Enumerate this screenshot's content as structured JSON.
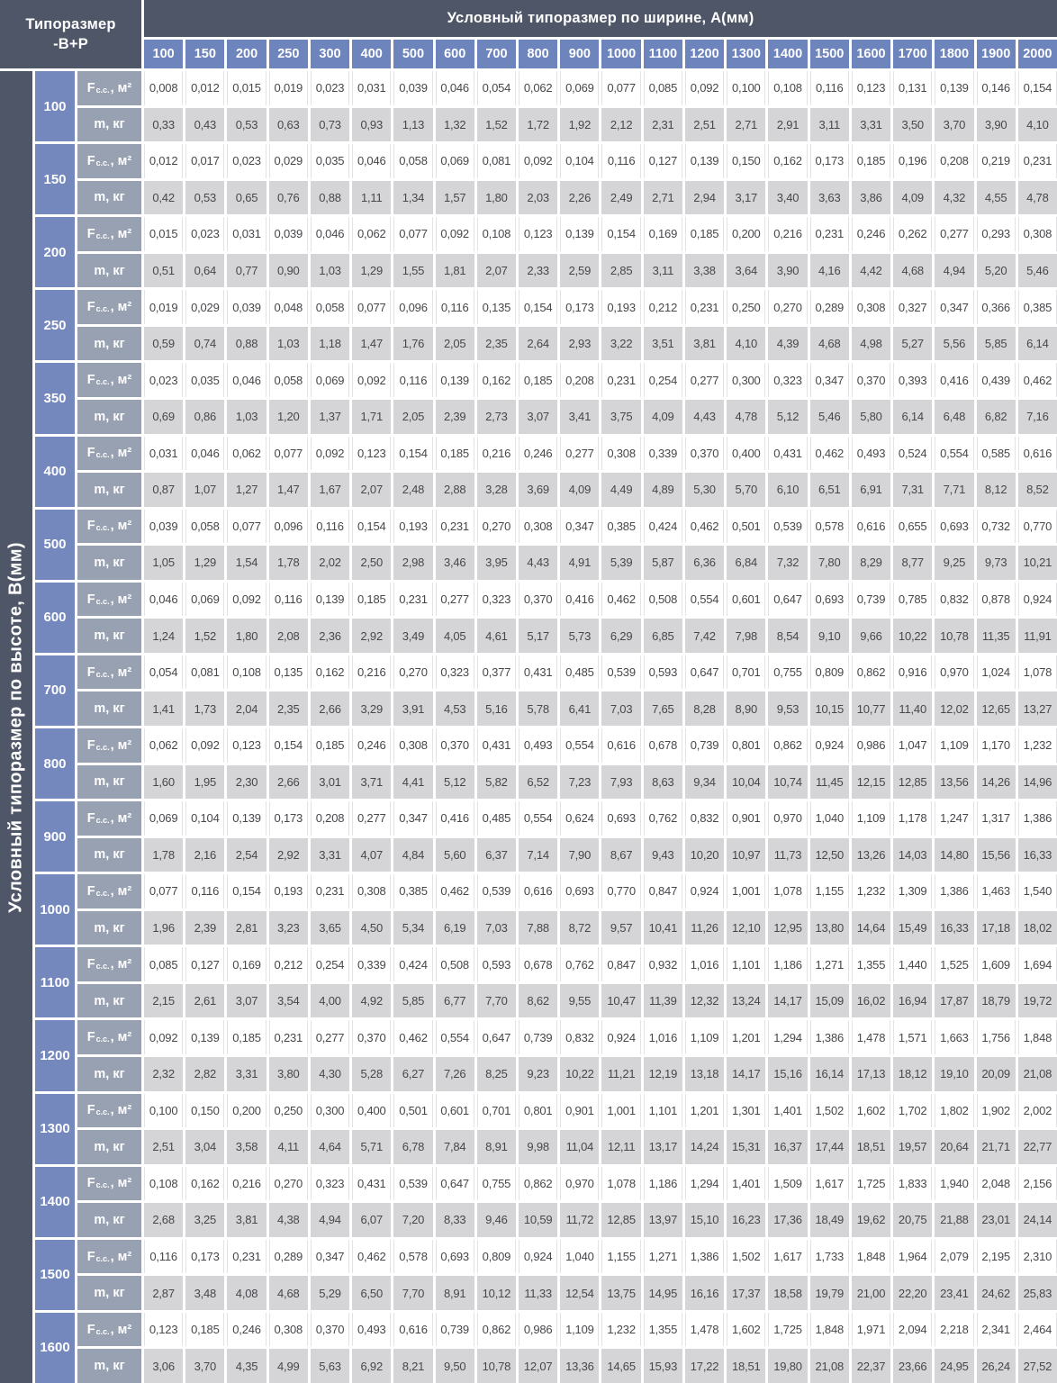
{
  "corner": {
    "line1": "Типоразмер",
    "line2": "-В+Р"
  },
  "top_axis": {
    "title": "Условный типоразмер по ширине, А(мм)",
    "columns": [
      "100",
      "150",
      "200",
      "250",
      "300",
      "400",
      "500",
      "600",
      "700",
      "800",
      "900",
      "1000",
      "1100",
      "1200",
      "1300",
      "1400",
      "1500",
      "1600",
      "1700",
      "1800",
      "1900",
      "2000"
    ]
  },
  "left_axis": {
    "title": "Условный типоразмер по высоте, В(мм)"
  },
  "metric_labels": {
    "area_prefix": "F",
    "area_sub": "c.c.",
    "area_suffix": ", м²",
    "mass": "m, кг"
  },
  "rows": [
    {
      "height": "100",
      "F": [
        "0,008",
        "0,012",
        "0,015",
        "0,019",
        "0,023",
        "0,031",
        "0,039",
        "0,046",
        "0,054",
        "0,062",
        "0,069",
        "0,077",
        "0,085",
        "0,092",
        "0,100",
        "0,108",
        "0,116",
        "0,123",
        "0,131",
        "0,139",
        "0,146",
        "0,154"
      ],
      "m": [
        "0,33",
        "0,43",
        "0,53",
        "0,63",
        "0,73",
        "0,93",
        "1,13",
        "1,32",
        "1,52",
        "1,72",
        "1,92",
        "2,12",
        "2,31",
        "2,51",
        "2,71",
        "2,91",
        "3,11",
        "3,31",
        "3,50",
        "3,70",
        "3,90",
        "4,10"
      ]
    },
    {
      "height": "150",
      "F": [
        "0,012",
        "0,017",
        "0,023",
        "0,029",
        "0,035",
        "0,046",
        "0,058",
        "0,069",
        "0,081",
        "0,092",
        "0,104",
        "0,116",
        "0,127",
        "0,139",
        "0,150",
        "0,162",
        "0,173",
        "0,185",
        "0,196",
        "0,208",
        "0,219",
        "0,231"
      ],
      "m": [
        "0,42",
        "0,53",
        "0,65",
        "0,76",
        "0,88",
        "1,11",
        "1,34",
        "1,57",
        "1,80",
        "2,03",
        "2,26",
        "2,49",
        "2,71",
        "2,94",
        "3,17",
        "3,40",
        "3,63",
        "3,86",
        "4,09",
        "4,32",
        "4,55",
        "4,78"
      ]
    },
    {
      "height": "200",
      "F": [
        "0,015",
        "0,023",
        "0,031",
        "0,039",
        "0,046",
        "0,062",
        "0,077",
        "0,092",
        "0,108",
        "0,123",
        "0,139",
        "0,154",
        "0,169",
        "0,185",
        "0,200",
        "0,216",
        "0,231",
        "0,246",
        "0,262",
        "0,277",
        "0,293",
        "0,308"
      ],
      "m": [
        "0,51",
        "0,64",
        "0,77",
        "0,90",
        "1,03",
        "1,29",
        "1,55",
        "1,81",
        "2,07",
        "2,33",
        "2,59",
        "2,85",
        "3,11",
        "3,38",
        "3,64",
        "3,90",
        "4,16",
        "4,42",
        "4,68",
        "4,94",
        "5,20",
        "5,46"
      ]
    },
    {
      "height": "250",
      "F": [
        "0,019",
        "0,029",
        "0,039",
        "0,048",
        "0,058",
        "0,077",
        "0,096",
        "0,116",
        "0,135",
        "0,154",
        "0,173",
        "0,193",
        "0,212",
        "0,231",
        "0,250",
        "0,270",
        "0,289",
        "0,308",
        "0,327",
        "0,347",
        "0,366",
        "0,385"
      ],
      "m": [
        "0,59",
        "0,74",
        "0,88",
        "1,03",
        "1,18",
        "1,47",
        "1,76",
        "2,05",
        "2,35",
        "2,64",
        "2,93",
        "3,22",
        "3,51",
        "3,81",
        "4,10",
        "4,39",
        "4,68",
        "4,98",
        "5,27",
        "5,56",
        "5,85",
        "6,14"
      ]
    },
    {
      "height": "350",
      "F": [
        "0,023",
        "0,035",
        "0,046",
        "0,058",
        "0,069",
        "0,092",
        "0,116",
        "0,139",
        "0,162",
        "0,185",
        "0,208",
        "0,231",
        "0,254",
        "0,277",
        "0,300",
        "0,323",
        "0,347",
        "0,370",
        "0,393",
        "0,416",
        "0,439",
        "0,462"
      ],
      "m": [
        "0,69",
        "0,86",
        "1,03",
        "1,20",
        "1,37",
        "1,71",
        "2,05",
        "2,39",
        "2,73",
        "3,07",
        "3,41",
        "3,75",
        "4,09",
        "4,43",
        "4,78",
        "5,12",
        "5,46",
        "5,80",
        "6,14",
        "6,48",
        "6,82",
        "7,16"
      ]
    },
    {
      "height": "400",
      "F": [
        "0,031",
        "0,046",
        "0,062",
        "0,077",
        "0,092",
        "0,123",
        "0,154",
        "0,185",
        "0,216",
        "0,246",
        "0,277",
        "0,308",
        "0,339",
        "0,370",
        "0,400",
        "0,431",
        "0,462",
        "0,493",
        "0,524",
        "0,554",
        "0,585",
        "0,616"
      ],
      "m": [
        "0,87",
        "1,07",
        "1,27",
        "1,47",
        "1,67",
        "2,07",
        "2,48",
        "2,88",
        "3,28",
        "3,69",
        "4,09",
        "4,49",
        "4,89",
        "5,30",
        "5,70",
        "6,10",
        "6,51",
        "6,91",
        "7,31",
        "7,71",
        "8,12",
        "8,52"
      ]
    },
    {
      "height": "500",
      "F": [
        "0,039",
        "0,058",
        "0,077",
        "0,096",
        "0,116",
        "0,154",
        "0,193",
        "0,231",
        "0,270",
        "0,308",
        "0,347",
        "0,385",
        "0,424",
        "0,462",
        "0,501",
        "0,539",
        "0,578",
        "0,616",
        "0,655",
        "0,693",
        "0,732",
        "0,770"
      ],
      "m": [
        "1,05",
        "1,29",
        "1,54",
        "1,78",
        "2,02",
        "2,50",
        "2,98",
        "3,46",
        "3,95",
        "4,43",
        "4,91",
        "5,39",
        "5,87",
        "6,36",
        "6,84",
        "7,32",
        "7,80",
        "8,29",
        "8,77",
        "9,25",
        "9,73",
        "10,21"
      ]
    },
    {
      "height": "600",
      "F": [
        "0,046",
        "0,069",
        "0,092",
        "0,116",
        "0,139",
        "0,185",
        "0,231",
        "0,277",
        "0,323",
        "0,370",
        "0,416",
        "0,462",
        "0,508",
        "0,554",
        "0,601",
        "0,647",
        "0,693",
        "0,739",
        "0,785",
        "0,832",
        "0,878",
        "0,924"
      ],
      "m": [
        "1,24",
        "1,52",
        "1,80",
        "2,08",
        "2,36",
        "2,92",
        "3,49",
        "4,05",
        "4,61",
        "5,17",
        "5,73",
        "6,29",
        "6,85",
        "7,42",
        "7,98",
        "8,54",
        "9,10",
        "9,66",
        "10,22",
        "10,78",
        "11,35",
        "11,91"
      ]
    },
    {
      "height": "700",
      "F": [
        "0,054",
        "0,081",
        "0,108",
        "0,135",
        "0,162",
        "0,216",
        "0,270",
        "0,323",
        "0,377",
        "0,431",
        "0,485",
        "0,539",
        "0,593",
        "0,647",
        "0,701",
        "0,755",
        "0,809",
        "0,862",
        "0,916",
        "0,970",
        "1,024",
        "1,078"
      ],
      "m": [
        "1,41",
        "1,73",
        "2,04",
        "2,35",
        "2,66",
        "3,29",
        "3,91",
        "4,53",
        "5,16",
        "5,78",
        "6,41",
        "7,03",
        "7,65",
        "8,28",
        "8,90",
        "9,53",
        "10,15",
        "10,77",
        "11,40",
        "12,02",
        "12,65",
        "13,27"
      ]
    },
    {
      "height": "800",
      "F": [
        "0,062",
        "0,092",
        "0,123",
        "0,154",
        "0,185",
        "0,246",
        "0,308",
        "0,370",
        "0,431",
        "0,493",
        "0,554",
        "0,616",
        "0,678",
        "0,739",
        "0,801",
        "0,862",
        "0,924",
        "0,986",
        "1,047",
        "1,109",
        "1,170",
        "1,232"
      ],
      "m": [
        "1,60",
        "1,95",
        "2,30",
        "2,66",
        "3,01",
        "3,71",
        "4,41",
        "5,12",
        "5,82",
        "6,52",
        "7,23",
        "7,93",
        "8,63",
        "9,34",
        "10,04",
        "10,74",
        "11,45",
        "12,15",
        "12,85",
        "13,56",
        "14,26",
        "14,96"
      ]
    },
    {
      "height": "900",
      "F": [
        "0,069",
        "0,104",
        "0,139",
        "0,173",
        "0,208",
        "0,277",
        "0,347",
        "0,416",
        "0,485",
        "0,554",
        "0,624",
        "0,693",
        "0,762",
        "0,832",
        "0,901",
        "0,970",
        "1,040",
        "1,109",
        "1,178",
        "1,247",
        "1,317",
        "1,386"
      ],
      "m": [
        "1,78",
        "2,16",
        "2,54",
        "2,92",
        "3,31",
        "4,07",
        "4,84",
        "5,60",
        "6,37",
        "7,14",
        "7,90",
        "8,67",
        "9,43",
        "10,20",
        "10,97",
        "11,73",
        "12,50",
        "13,26",
        "14,03",
        "14,80",
        "15,56",
        "16,33"
      ]
    },
    {
      "height": "1000",
      "F": [
        "0,077",
        "0,116",
        "0,154",
        "0,193",
        "0,231",
        "0,308",
        "0,385",
        "0,462",
        "0,539",
        "0,616",
        "0,693",
        "0,770",
        "0,847",
        "0,924",
        "1,001",
        "1,078",
        "1,155",
        "1,232",
        "1,309",
        "1,386",
        "1,463",
        "1,540"
      ],
      "m": [
        "1,96",
        "2,39",
        "2,81",
        "3,23",
        "3,65",
        "4,50",
        "5,34",
        "6,19",
        "7,03",
        "7,88",
        "8,72",
        "9,57",
        "10,41",
        "11,26",
        "12,10",
        "12,95",
        "13,80",
        "14,64",
        "15,49",
        "16,33",
        "17,18",
        "18,02"
      ]
    },
    {
      "height": "1100",
      "F": [
        "0,085",
        "0,127",
        "0,169",
        "0,212",
        "0,254",
        "0,339",
        "0,424",
        "0,508",
        "0,593",
        "0,678",
        "0,762",
        "0,847",
        "0,932",
        "1,016",
        "1,101",
        "1,186",
        "1,271",
        "1,355",
        "1,440",
        "1,525",
        "1,609",
        "1,694"
      ],
      "m": [
        "2,15",
        "2,61",
        "3,07",
        "3,54",
        "4,00",
        "4,92",
        "5,85",
        "6,77",
        "7,70",
        "8,62",
        "9,55",
        "10,47",
        "11,39",
        "12,32",
        "13,24",
        "14,17",
        "15,09",
        "16,02",
        "16,94",
        "17,87",
        "18,79",
        "19,72"
      ]
    },
    {
      "height": "1200",
      "F": [
        "0,092",
        "0,139",
        "0,185",
        "0,231",
        "0,277",
        "0,370",
        "0,462",
        "0,554",
        "0,647",
        "0,739",
        "0,832",
        "0,924",
        "1,016",
        "1,109",
        "1,201",
        "1,294",
        "1,386",
        "1,478",
        "1,571",
        "1,663",
        "1,756",
        "1,848"
      ],
      "m": [
        "2,32",
        "2,82",
        "3,31",
        "3,80",
        "4,30",
        "5,28",
        "6,27",
        "7,26",
        "8,25",
        "9,23",
        "10,22",
        "11,21",
        "12,19",
        "13,18",
        "14,17",
        "15,16",
        "16,14",
        "17,13",
        "18,12",
        "19,10",
        "20,09",
        "21,08"
      ]
    },
    {
      "height": "1300",
      "F": [
        "0,100",
        "0,150",
        "0,200",
        "0,250",
        "0,300",
        "0,400",
        "0,501",
        "0,601",
        "0,701",
        "0,801",
        "0,901",
        "1,001",
        "1,101",
        "1,201",
        "1,301",
        "1,401",
        "1,502",
        "1,602",
        "1,702",
        "1,802",
        "1,902",
        "2,002"
      ],
      "m": [
        "2,51",
        "3,04",
        "3,58",
        "4,11",
        "4,64",
        "5,71",
        "6,78",
        "7,84",
        "8,91",
        "9,98",
        "11,04",
        "12,11",
        "13,17",
        "14,24",
        "15,31",
        "16,37",
        "17,44",
        "18,51",
        "19,57",
        "20,64",
        "21,71",
        "22,77"
      ]
    },
    {
      "height": "1400",
      "F": [
        "0,108",
        "0,162",
        "0,216",
        "0,270",
        "0,323",
        "0,431",
        "0,539",
        "0,647",
        "0,755",
        "0,862",
        "0,970",
        "1,078",
        "1,186",
        "1,294",
        "1,401",
        "1,509",
        "1,617",
        "1,725",
        "1,833",
        "1,940",
        "2,048",
        "2,156"
      ],
      "m": [
        "2,68",
        "3,25",
        "3,81",
        "4,38",
        "4,94",
        "6,07",
        "7,20",
        "8,33",
        "9,46",
        "10,59",
        "11,72",
        "12,85",
        "13,97",
        "15,10",
        "16,23",
        "17,36",
        "18,49",
        "19,62",
        "20,75",
        "21,88",
        "23,01",
        "24,14"
      ]
    },
    {
      "height": "1500",
      "F": [
        "0,116",
        "0,173",
        "0,231",
        "0,289",
        "0,347",
        "0,462",
        "0,578",
        "0,693",
        "0,809",
        "0,924",
        "1,040",
        "1,155",
        "1,271",
        "1,386",
        "1,502",
        "1,617",
        "1,733",
        "1,848",
        "1,964",
        "2,079",
        "2,195",
        "2,310"
      ],
      "m": [
        "2,87",
        "3,48",
        "4,08",
        "4,68",
        "5,29",
        "6,50",
        "7,70",
        "8,91",
        "10,12",
        "11,33",
        "12,54",
        "13,75",
        "14,95",
        "16,16",
        "17,37",
        "18,58",
        "19,79",
        "21,00",
        "22,20",
        "23,41",
        "24,62",
        "25,83"
      ]
    },
    {
      "height": "1600",
      "F": [
        "0,123",
        "0,185",
        "0,246",
        "0,308",
        "0,370",
        "0,493",
        "0,616",
        "0,739",
        "0,862",
        "0,986",
        "1,109",
        "1,232",
        "1,355",
        "1,478",
        "1,602",
        "1,725",
        "1,848",
        "1,971",
        "2,094",
        "2,218",
        "2,341",
        "2,464"
      ],
      "m": [
        "3,06",
        "3,70",
        "4,35",
        "4,99",
        "5,63",
        "6,92",
        "8,21",
        "9,50",
        "10,78",
        "12,07",
        "13,36",
        "14,65",
        "15,93",
        "17,22",
        "18,51",
        "19,80",
        "21,08",
        "22,37",
        "23,66",
        "24,95",
        "26,24",
        "27,52"
      ]
    }
  ],
  "colors": {
    "header_dark": "#4e5667",
    "axis_blue": "#6e84bd",
    "row_blue": "#7488bd",
    "label_gray": "#98a1b2",
    "mass_row_bg": "#d5d5d8",
    "area_row_bg": "#ffffff",
    "grid_line": "#e3e3e6",
    "value_text": "#47474b",
    "gap_white": "#ffffff"
  }
}
